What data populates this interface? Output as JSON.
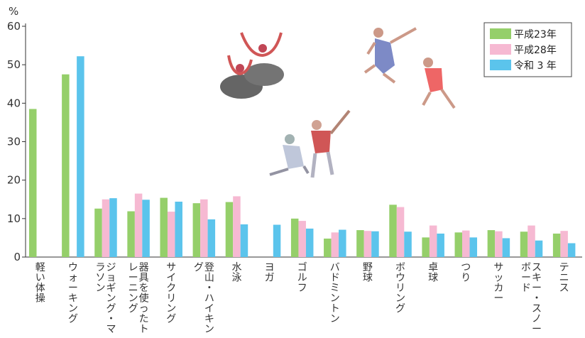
{
  "chart_data": {
    "type": "bar",
    "ylabel": "%",
    "ylim": [
      0,
      60
    ],
    "yticks": [
      0,
      10,
      20,
      30,
      40,
      50,
      60
    ],
    "grid": false,
    "legend_position": "top-right",
    "categories": [
      "軽い体操",
      "ウォーキング",
      "ジョギング・マラソン",
      "器具を使ったトレーニング",
      "サイクリング",
      "登山・ハイキング",
      "水泳",
      "ヨガ",
      "ゴルフ",
      "バドミントン",
      "野球",
      "ボウリング",
      "卓球",
      "つり",
      "サッカー",
      "スキー・スノーボード",
      "テニス"
    ],
    "series": [
      {
        "name": "平成23年",
        "color": "#95cf6a",
        "values": [
          38.5,
          47.5,
          12.6,
          11.9,
          15.4,
          14.0,
          14.3,
          null,
          10.0,
          4.8,
          7.0,
          13.6,
          5.1,
          6.4,
          7.0,
          6.6,
          6.1
        ]
      },
      {
        "name": "平成28年",
        "color": "#f6b9d2",
        "values": [
          null,
          null,
          15.0,
          16.5,
          11.8,
          15.0,
          15.8,
          null,
          9.4,
          6.4,
          6.8,
          13.0,
          8.2,
          6.9,
          6.7,
          8.2,
          6.8
        ]
      },
      {
        "name": "令和 3 年",
        "color": "#5bc4ec",
        "values": [
          null,
          52.2,
          15.3,
          14.9,
          14.4,
          9.8,
          8.5,
          8.4,
          7.4,
          7.1,
          6.7,
          6.6,
          6.1,
          5.1,
          4.9,
          4.3,
          3.6
        ]
      }
    ]
  }
}
